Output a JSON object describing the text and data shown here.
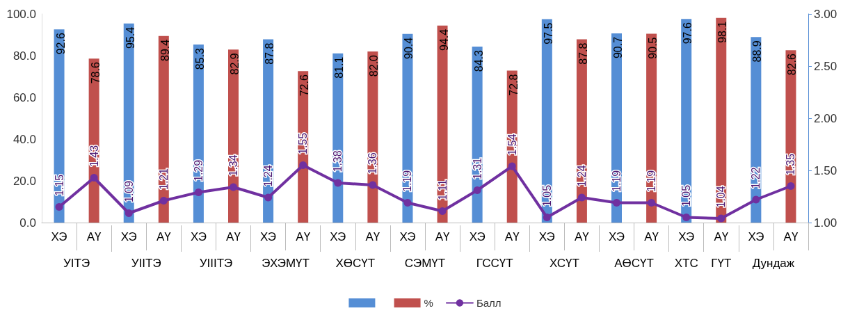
{
  "chart_data": {
    "type": "bar",
    "categories": [
      "ХЭ",
      "АҮ",
      "ХЭ",
      "АҮ",
      "ХЭ",
      "АҮ",
      "ХЭ",
      "АҮ",
      "ХЭ",
      "АҮ",
      "ХЭ",
      "АҮ",
      "ХЭ",
      "АҮ",
      "ХЭ",
      "АҮ",
      "ХЭ",
      "АҮ",
      "ХЭ",
      "АҮ",
      "ХЭ",
      "АҮ"
    ],
    "series": [
      {
        "color": "#558ed5",
        "values": [
          92.6,
          null,
          95.4,
          null,
          85.3,
          null,
          87.8,
          null,
          81.1,
          null,
          90.4,
          null,
          84.3,
          null,
          97.5,
          null,
          90.7,
          null,
          97.6,
          null,
          88.9,
          null
        ],
        "value_labels": [
          "92.6",
          null,
          "95.4",
          null,
          "85.3",
          null,
          "87.8",
          null,
          "81.1",
          null,
          "90.4",
          null,
          "84.3",
          null,
          "97.5",
          null,
          "90.7",
          null,
          "97.6",
          null,
          "88.9",
          null
        ]
      },
      {
        "name": "%",
        "color": "#c0504d",
        "values": [
          null,
          78.6,
          null,
          89.4,
          null,
          82.9,
          null,
          72.6,
          null,
          82.0,
          null,
          94.4,
          null,
          72.8,
          null,
          87.8,
          null,
          90.5,
          null,
          98.1,
          null,
          82.6
        ],
        "value_labels": [
          null,
          "78.6",
          null,
          "89.4",
          null,
          "82.9",
          null,
          "72.6",
          null,
          "82.0",
          null,
          "94.4",
          null,
          "72.8",
          null,
          "87.8",
          null,
          "90.5",
          null,
          "98.1",
          null,
          "82.6"
        ]
      },
      {
        "name": "Балл",
        "type": "line",
        "axis": "y2",
        "color": "#7030a0",
        "values": [
          1.15,
          1.43,
          1.09,
          1.21,
          1.29,
          1.34,
          1.24,
          1.55,
          1.38,
          1.36,
          1.19,
          1.11,
          1.31,
          1.54,
          1.05,
          1.24,
          1.19,
          1.19,
          1.05,
          1.04,
          1.22,
          1.35
        ]
      }
    ],
    "annotations": [
      "УІТЭ",
      "УІІТЭ",
      "УІІІТЭ",
      "ЭХЭМҮТ",
      "ХӨСҮТ",
      "СЭМҮТ",
      "ГССҮТ",
      "ХСҮТ",
      "АӨСҮТ",
      "ХТС",
      "ГҮТ",
      "Дундаж"
    ],
    "ylim": [
      0,
      100
    ],
    "yticks": [
      {
        "value": 0,
        "label": "0.0"
      },
      {
        "value": 20,
        "label": "20.0"
      },
      {
        "value": 40,
        "label": "40.0"
      },
      {
        "value": 60,
        "label": "60.0"
      },
      {
        "value": 80,
        "label": "80.0"
      },
      {
        "value": 100,
        "label": "100.0"
      }
    ],
    "y2lim": [
      1,
      3
    ],
    "y2ticks": [
      {
        "value": 1,
        "label": "1.00"
      },
      {
        "value": 1.5,
        "label": "1.50"
      },
      {
        "value": 2,
        "label": "2.00"
      },
      {
        "value": 2.5,
        "label": "2.50"
      },
      {
        "value": 3,
        "label": "3.00"
      }
    ],
    "data_labels": true,
    "legend": "bottom",
    "marker": "circle",
    "line_style": "solid"
  }
}
